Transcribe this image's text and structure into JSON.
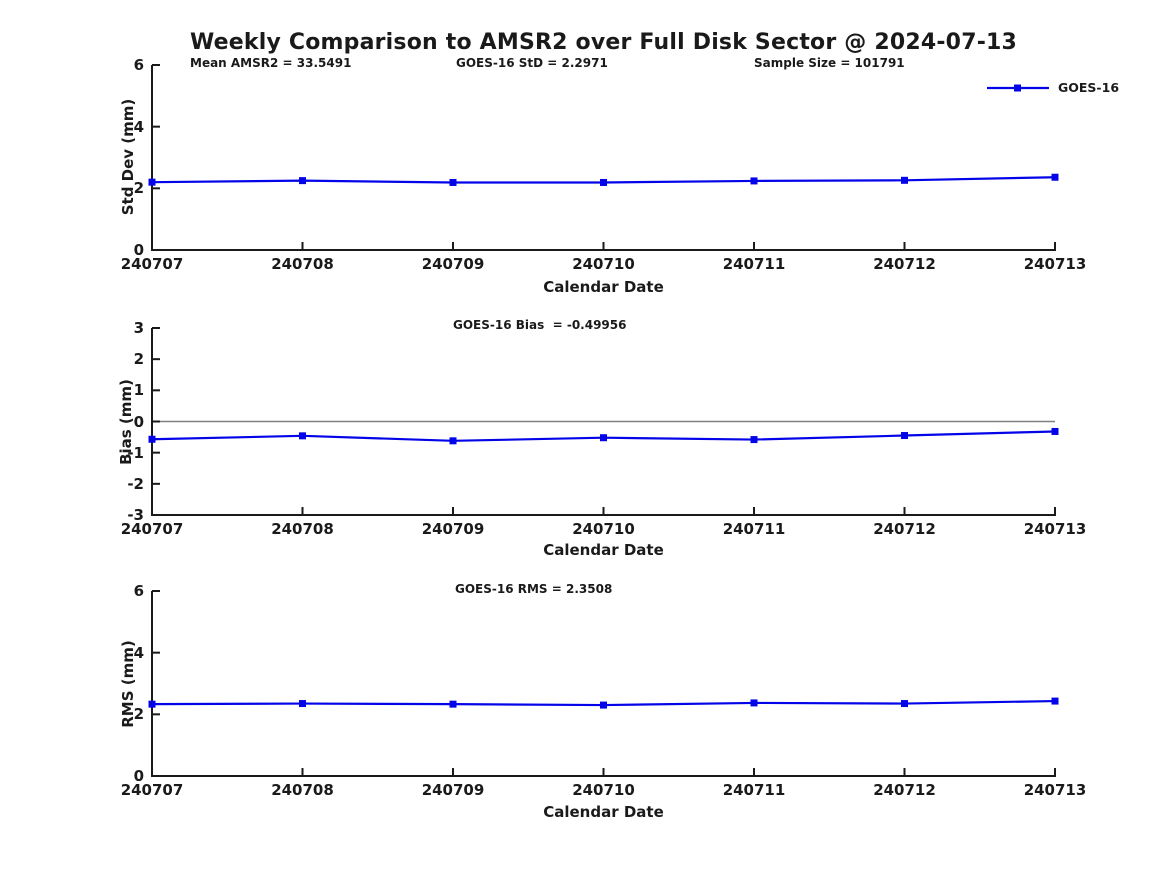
{
  "colors": {
    "series": "#0404E8",
    "axis": "#1a1a1a",
    "text": "#1a1a1a",
    "zero_line": "#808080"
  },
  "legend": {
    "series_label": "GOES-16",
    "position": "top-right-outside-plot"
  },
  "chart_data": [
    {
      "type": "line",
      "panel": "std-dev",
      "figure_title": "Weekly Comparison to AMSR2 over Full Disk Sector @ 2024-07-13",
      "annotations": [
        "Mean AMSR2 = 33.5491",
        "GOES-16 StD = 2.2971",
        "Sample Size = 101791"
      ],
      "ylabel": "Std Dev (mm)",
      "xlabel": "Calendar Date",
      "categories": [
        "240707",
        "240708",
        "240709",
        "240710",
        "240711",
        "240712",
        "240713"
      ],
      "series": [
        {
          "name": "GOES-16",
          "marker": "square",
          "values": [
            2.2,
            2.25,
            2.19,
            2.19,
            2.24,
            2.26,
            2.36
          ]
        }
      ],
      "ylim": [
        0,
        6
      ],
      "yticks": [
        0,
        2,
        4,
        6
      ],
      "grid": false,
      "legend": [
        "GOES-16"
      ]
    },
    {
      "type": "line",
      "panel": "bias",
      "annotations": [
        "GOES-16 Bias  = -0.49956"
      ],
      "ylabel": "Bias (mm)",
      "xlabel": "Calendar Date",
      "categories": [
        "240707",
        "240708",
        "240709",
        "240710",
        "240711",
        "240712",
        "240713"
      ],
      "series": [
        {
          "name": "GOES-16",
          "marker": "square",
          "values": [
            -0.57,
            -0.46,
            -0.62,
            -0.52,
            -0.58,
            -0.45,
            -0.32
          ]
        }
      ],
      "ylim": [
        -3,
        3
      ],
      "yticks": [
        -3,
        -2,
        -1,
        0,
        1,
        2,
        3
      ],
      "zero_line": true,
      "grid": false
    },
    {
      "type": "line",
      "panel": "rms",
      "annotations": [
        "GOES-16 RMS = 2.3508"
      ],
      "ylabel": "RMS (mm)",
      "xlabel": "Calendar Date",
      "categories": [
        "240707",
        "240708",
        "240709",
        "240710",
        "240711",
        "240712",
        "240713"
      ],
      "series": [
        {
          "name": "GOES-16",
          "marker": "square",
          "values": [
            2.33,
            2.35,
            2.33,
            2.3,
            2.37,
            2.35,
            2.43
          ]
        }
      ],
      "ylim": [
        0,
        6
      ],
      "yticks": [
        0,
        2,
        4,
        6
      ],
      "grid": false
    }
  ]
}
